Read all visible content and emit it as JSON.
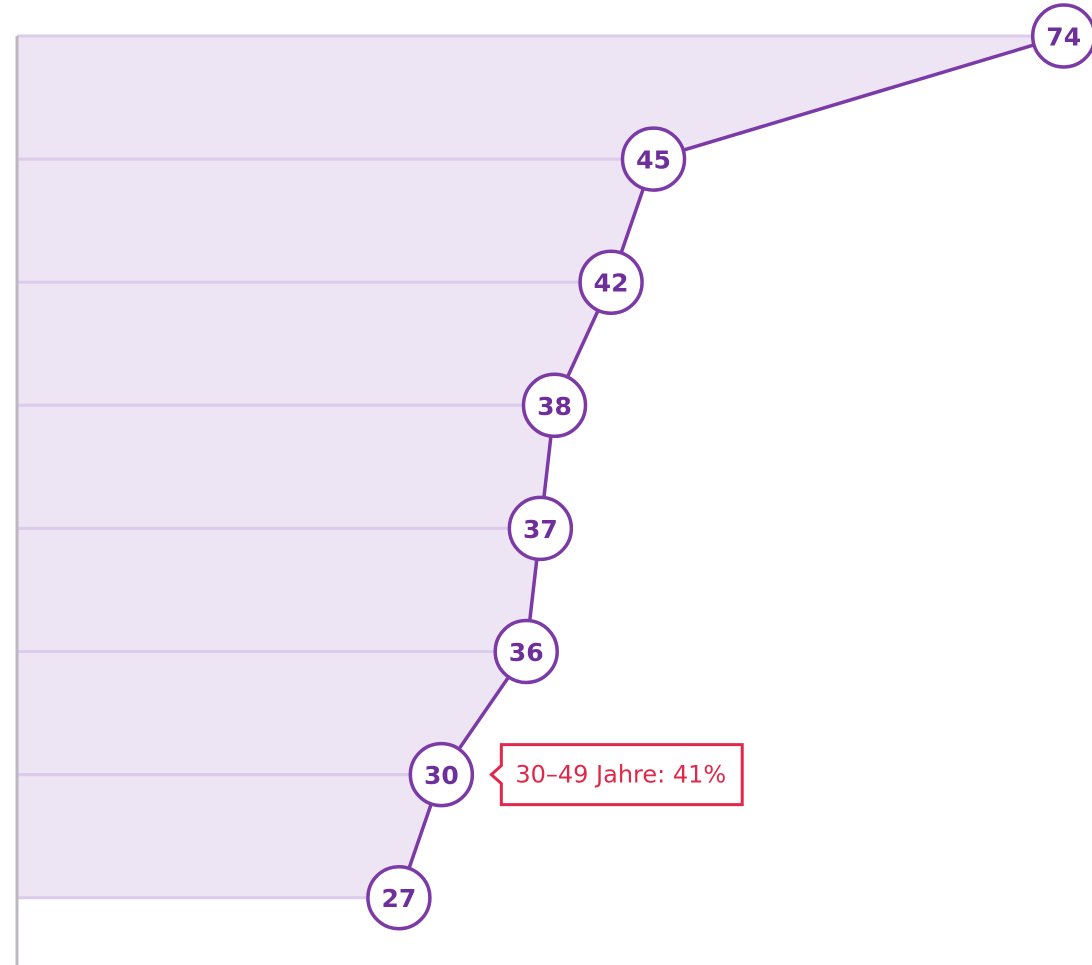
{
  "chart_data": {
    "type": "line",
    "orientation": "horizontal",
    "categories": [
      null,
      null,
      null,
      null,
      null,
      null,
      null,
      null
    ],
    "values": [
      74,
      45,
      42,
      38,
      37,
      36,
      30,
      27
    ],
    "color": "#7b3aa6",
    "fill": "#ede4f4",
    "grid": true,
    "xlim": [
      0,
      76
    ],
    "annotation": "30–49 Jahre: 41%"
  }
}
